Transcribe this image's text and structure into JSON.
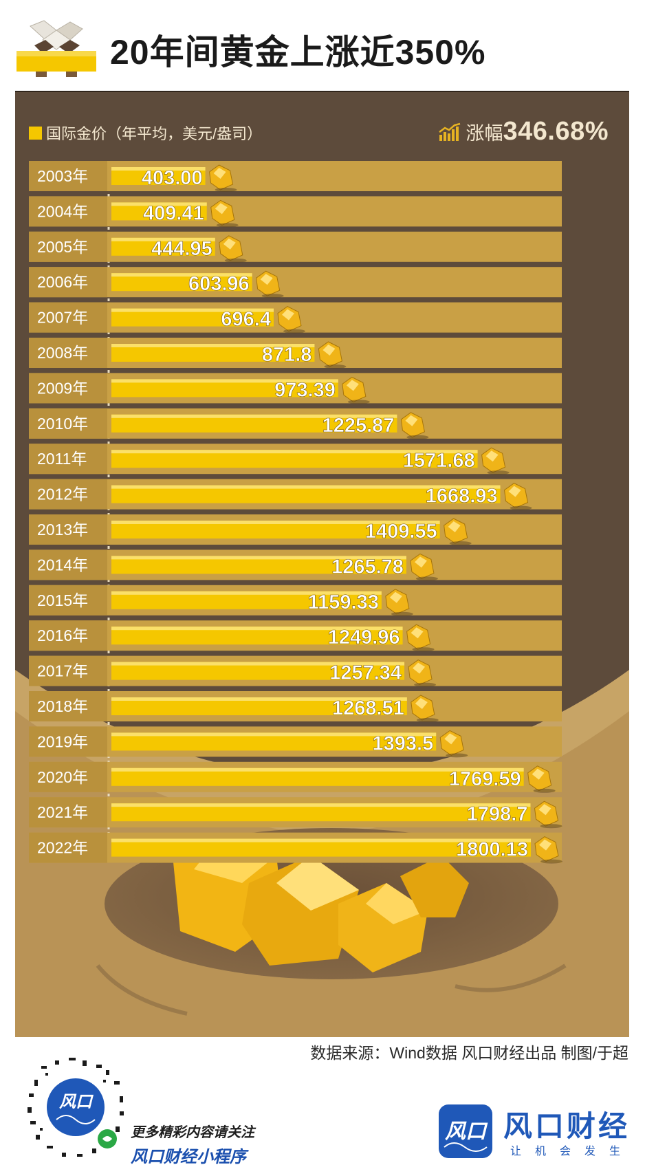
{
  "header": {
    "title": "20年间黄金上涨近350%"
  },
  "legend": {
    "label": "国际金价（年平均，美元/盎司）",
    "swatch_color": "#f5c700"
  },
  "growth": {
    "label": "涨幅",
    "value": "346.68%"
  },
  "chart_data": {
    "type": "bar",
    "orientation": "horizontal",
    "categories": [
      "2003年",
      "2004年",
      "2005年",
      "2006年",
      "2007年",
      "2008年",
      "2009年",
      "2010年",
      "2011年",
      "2012年",
      "2013年",
      "2014年",
      "2015年",
      "2016年",
      "2017年",
      "2018年",
      "2019年",
      "2020年",
      "2021年",
      "2022年"
    ],
    "series": [
      {
        "name": "国际金价（年平均，美元/盎司）",
        "values": [
          403.0,
          409.41,
          444.95,
          603.96,
          696.4,
          871.8,
          973.39,
          1225.87,
          1571.68,
          1668.93,
          1409.55,
          1265.78,
          1159.33,
          1249.96,
          1257.34,
          1268.51,
          1393.5,
          1769.59,
          1798.7,
          1800.13
        ],
        "value_labels": [
          "403.00",
          "409.41",
          "444.95",
          "603.96",
          "696.4",
          "871.8",
          "973.39",
          "1225.87",
          "1571.68",
          "1668.93",
          "1409.55",
          "1265.78",
          "1159.33",
          "1249.96",
          "1257.34",
          "1268.51",
          "1393.5",
          "1769.59",
          "1798.7",
          "1800.13"
        ]
      }
    ],
    "bar_color": "#f5c700",
    "track_color": "#c9a045",
    "label_color": "#ffffff"
  },
  "footer": {
    "source": "数据来源：Wind数据   风口财经出品   制图/于超",
    "promo_line1": "更多精彩内容请关注",
    "promo_line2": "风口财经小程序",
    "brand_logo": "风口",
    "brand_name": "风口财经",
    "brand_slogan": "让机会发生",
    "brand_color": "#1f58b8"
  }
}
